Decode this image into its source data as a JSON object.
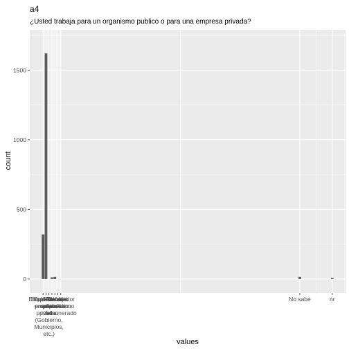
{
  "chart_data": {
    "type": "bar",
    "title": "a4",
    "subtitle": "¿Usted trabaja para un organismo publico o para una empresa privada?",
    "xlabel": "values",
    "ylabel": "count",
    "ylim": [
      -100,
      1790
    ],
    "y_ticks": [
      0,
      500,
      1000,
      1500
    ],
    "x_ticks": [
      {
        "label": "Cuenta propia",
        "x": 1
      },
      {
        "label": "Empleado de empresa privada",
        "x": 2
      },
      {
        "label": "Empleado del sector público (Gobierno, Municipios, etc.)",
        "x": 3
      },
      {
        "label": "Otro",
        "x": 4
      },
      {
        "label": "Patrón o empleador",
        "x": 5
      },
      {
        "label": "Servicio doméstico",
        "x": 6
      },
      {
        "label": "Trabajador familiar no remunerado",
        "x": 7
      },
      {
        "label": "No sabe",
        "x": 88
      },
      {
        "label": "nr",
        "x": 99
      }
    ],
    "bars": [
      {
        "x": 1,
        "value": 320
      },
      {
        "x": 2,
        "value": 1620
      },
      {
        "x": 3,
        "value": 0
      },
      {
        "x": 4,
        "value": 12
      },
      {
        "x": 5,
        "value": 15
      },
      {
        "x": 6,
        "value": 0
      },
      {
        "x": 7,
        "value": 0
      },
      {
        "x": 88,
        "value": 15
      },
      {
        "x": 99,
        "value": 7
      }
    ],
    "panel_background": "#ebebeb",
    "gridline_color": "#ffffff",
    "bar_color": "#595959",
    "grid": true,
    "legend": "none"
  }
}
